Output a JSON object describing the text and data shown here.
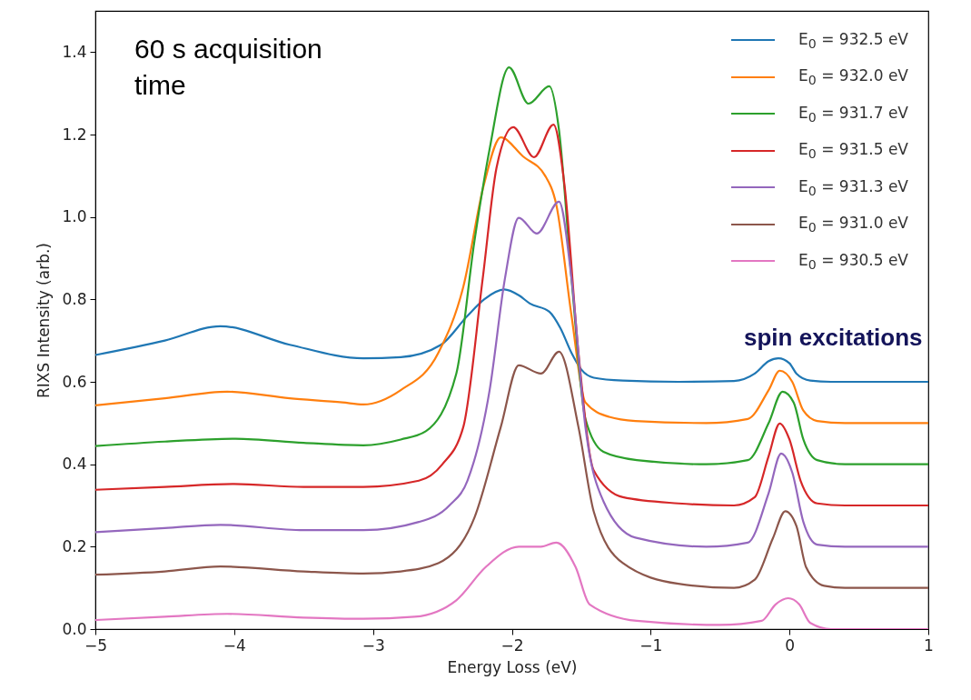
{
  "chart_data": {
    "type": "line",
    "xlabel": "Energy Loss (eV)",
    "ylabel": "RIXS Intensity (arb.)",
    "xlim": [
      -5,
      1
    ],
    "xticks": [
      -5,
      -4,
      -3,
      -2,
      -1,
      0,
      1
    ],
    "ylim": [
      0,
      1.5
    ],
    "yticks": [
      {
        "value": 0,
        "label": "0.0"
      },
      0.2,
      0.4,
      0.6,
      0.8,
      {
        "value": 1,
        "label": "1.0"
      },
      1.2,
      1.4
    ],
    "grid": false,
    "legend": "top right",
    "annotations": [
      "60 s acquisition time",
      "spin excitations"
    ],
    "series": [
      {
        "name": "E$_{0}$ = 932.5 eV",
        "color": "#1f77b4",
        "x": [
          -5,
          -4.5,
          -4.1,
          -3.6,
          -3.07,
          -2.8,
          -2.51,
          -2.32,
          -2.2,
          -2.055,
          -1.95,
          -1.87,
          -1.73,
          -1.65,
          -1.57,
          -1.5,
          -1.41,
          -1.2,
          -0.8,
          -0.4,
          -0.25,
          -0.15,
          -0.08,
          0,
          0.05,
          0.15,
          0.3,
          1
        ],
        "values": [
          0.665,
          0.7,
          0.735,
          0.69,
          0.657,
          0.66,
          0.69,
          0.76,
          0.8,
          0.824,
          0.81,
          0.79,
          0.77,
          0.73,
          0.67,
          0.63,
          0.61,
          0.603,
          0.6,
          0.602,
          0.62,
          0.65,
          0.657,
          0.645,
          0.62,
          0.603,
          0.6,
          0.6
        ]
      },
      {
        "name": "E$_{0}$ = 932.0 eV",
        "color": "#ff7f0e",
        "x": [
          -5,
          -4.5,
          -4.05,
          -3.6,
          -3.22,
          -3.07,
          -2.8,
          -2.53,
          -2.35,
          -2.2,
          -2.08,
          -1.92,
          -1.76,
          -1.68,
          -1.57,
          -1.47,
          -1.3,
          -1.11,
          -0.6,
          -0.3,
          -0.15,
          -0.07,
          0.02,
          0.1,
          0.2,
          0.4,
          1
        ],
        "values": [
          0.543,
          0.56,
          0.576,
          0.56,
          0.55,
          0.545,
          0.58,
          0.67,
          0.83,
          1.08,
          1.193,
          1.147,
          1.1,
          1.03,
          0.76,
          0.55,
          0.515,
          0.505,
          0.5,
          0.51,
          0.58,
          0.627,
          0.6,
          0.53,
          0.505,
          0.5,
          0.5
        ]
      },
      {
        "name": "E$_{0}$ = 931.7 eV",
        "color": "#2ca02c",
        "x": [
          -5,
          -4.5,
          -3.99,
          -3.5,
          -3.07,
          -2.8,
          -2.62,
          -2.4,
          -2.27,
          -2.16,
          -2.02,
          -1.88,
          -1.73,
          -1.66,
          -1.57,
          -1.47,
          -1.34,
          -1.1,
          -0.6,
          -0.3,
          -0.15,
          -0.05,
          0.03,
          0.1,
          0.2,
          0.4,
          1
        ],
        "values": [
          0.444,
          0.455,
          0.462,
          0.452,
          0.446,
          0.46,
          0.48,
          0.62,
          0.94,
          1.165,
          1.363,
          1.275,
          1.317,
          1.21,
          0.85,
          0.51,
          0.43,
          0.41,
          0.4,
          0.41,
          0.5,
          0.576,
          0.55,
          0.46,
          0.41,
          0.4,
          0.4
        ]
      },
      {
        "name": "E$_{0}$ = 931.5 eV",
        "color": "#d62728",
        "x": [
          -5,
          -4.5,
          -4.0,
          -3.5,
          -3.07,
          -2.67,
          -2.5,
          -2.35,
          -2.21,
          -2.11,
          -1.99,
          -1.84,
          -1.7,
          -1.62,
          -1.52,
          -1.41,
          -1.2,
          -0.8,
          -0.4,
          -0.25,
          -0.15,
          -0.07,
          0,
          0.08,
          0.2,
          0.4,
          1
        ],
        "values": [
          0.338,
          0.345,
          0.352,
          0.345,
          0.345,
          0.36,
          0.4,
          0.49,
          0.85,
          1.12,
          1.218,
          1.145,
          1.224,
          1.075,
          0.67,
          0.385,
          0.32,
          0.305,
          0.3,
          0.32,
          0.42,
          0.499,
          0.46,
          0.36,
          0.305,
          0.3,
          0.3
        ]
      },
      {
        "name": "E$_{0}$ = 931.3 eV",
        "color": "#9467bd",
        "x": [
          -5,
          -4.5,
          -4.1,
          -3.5,
          -3.07,
          -2.67,
          -2.45,
          -2.32,
          -2.16,
          -2.05,
          -1.95,
          -1.82,
          -1.66,
          -1.57,
          -1.47,
          -1.34,
          -1.11,
          -0.6,
          -0.3,
          -0.15,
          -0.06,
          0.02,
          0.1,
          0.2,
          0.4,
          1
        ],
        "values": [
          0.235,
          0.245,
          0.253,
          0.24,
          0.24,
          0.26,
          0.3,
          0.36,
          0.58,
          0.85,
          0.998,
          0.96,
          1.037,
          0.85,
          0.49,
          0.31,
          0.222,
          0.2,
          0.21,
          0.33,
          0.426,
          0.38,
          0.26,
          0.205,
          0.2,
          0.2
        ]
      },
      {
        "name": "E$_{0}$ = 931.0 eV",
        "color": "#8c564b",
        "x": [
          -5,
          -4.5,
          -4.1,
          -3.5,
          -3.07,
          -2.8,
          -2.53,
          -2.27,
          -2.08,
          -1.95,
          -1.79,
          -1.66,
          -1.52,
          -1.41,
          -1.2,
          -0.8,
          -0.4,
          -0.25,
          -0.12,
          -0.03,
          0.05,
          0.12,
          0.25,
          0.4,
          1
        ],
        "values": [
          0.132,
          0.14,
          0.152,
          0.14,
          0.135,
          0.14,
          0.16,
          0.27,
          0.49,
          0.64,
          0.62,
          0.673,
          0.49,
          0.285,
          0.16,
          0.11,
          0.1,
          0.12,
          0.22,
          0.286,
          0.25,
          0.15,
          0.105,
          0.1,
          0.1
        ]
      },
      {
        "name": "E$_{0}$ = 930.5 eV",
        "color": "#e377c2",
        "x": [
          -5,
          -4.5,
          -4.05,
          -3.5,
          -3.07,
          -2.7,
          -2.4,
          -2.19,
          -1.95,
          -1.79,
          -1.68,
          -1.54,
          -1.44,
          -1.1,
          -0.5,
          -0.2,
          -0.1,
          -0.01,
          0.07,
          0.15,
          0.3,
          1
        ],
        "values": [
          0.022,
          0.03,
          0.037,
          0.028,
          0.025,
          0.03,
          0.07,
          0.15,
          0.2,
          0.2,
          0.21,
          0.15,
          0.06,
          0.02,
          0.01,
          0.02,
          0.06,
          0.075,
          0.06,
          0.015,
          0.0,
          0.0
        ]
      }
    ]
  }
}
